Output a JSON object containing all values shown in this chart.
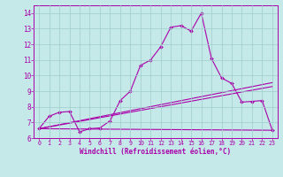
{
  "xlabel": "Windchill (Refroidissement éolien,°C)",
  "background_color": "#c5e8e8",
  "grid_color": "#a0cccc",
  "line_color": "#aa00aa",
  "xlim": [
    -0.5,
    23.5
  ],
  "ylim": [
    6.0,
    14.5
  ],
  "xticks": [
    0,
    1,
    2,
    3,
    4,
    5,
    6,
    7,
    8,
    9,
    10,
    11,
    12,
    13,
    14,
    15,
    16,
    17,
    18,
    19,
    20,
    21,
    22,
    23
  ],
  "yticks": [
    6,
    7,
    8,
    9,
    10,
    11,
    12,
    13,
    14
  ],
  "series1_x": [
    0,
    1,
    2,
    3,
    4,
    5,
    6,
    7,
    8,
    9,
    10,
    11,
    12,
    13,
    14,
    15,
    16,
    17,
    18,
    19,
    20,
    21,
    22,
    23
  ],
  "series1_y": [
    6.6,
    7.4,
    7.65,
    7.7,
    6.4,
    6.6,
    6.65,
    7.1,
    8.4,
    9.0,
    10.65,
    11.0,
    11.85,
    13.1,
    13.2,
    12.85,
    14.0,
    11.1,
    9.85,
    9.5,
    8.3,
    8.35,
    8.4,
    6.5
  ],
  "series2_x": [
    0,
    23
  ],
  "series2_y": [
    6.6,
    6.5
  ],
  "series3_x": [
    0,
    23
  ],
  "series3_y": [
    6.6,
    9.3
  ],
  "series4_x": [
    0,
    23
  ],
  "series4_y": [
    6.6,
    9.55
  ]
}
